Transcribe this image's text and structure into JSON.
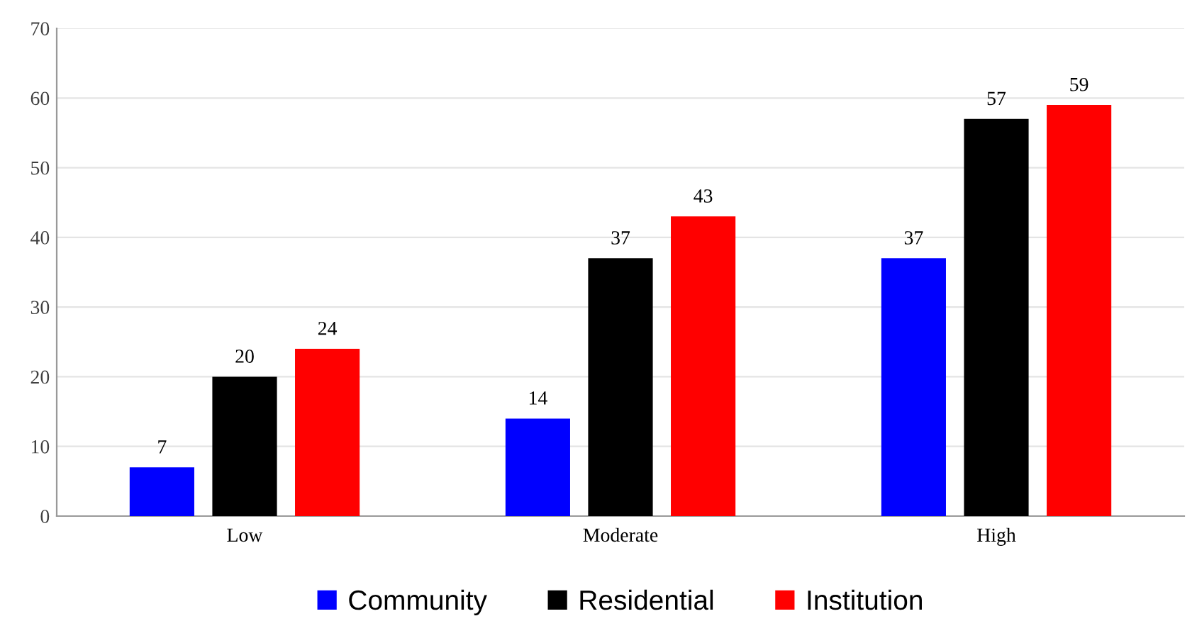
{
  "chart_data": {
    "type": "bar",
    "categories": [
      "Low",
      "Moderate",
      "High"
    ],
    "series": [
      {
        "name": "Community",
        "color": "#0000ff",
        "values": [
          7,
          14,
          37
        ]
      },
      {
        "name": "Residential",
        "color": "#000000",
        "values": [
          20,
          37,
          57
        ]
      },
      {
        "name": "Institution",
        "color": "#ff0000",
        "values": [
          24,
          43,
          59
        ]
      }
    ],
    "ylim": [
      0,
      70
    ],
    "yticks": [
      0,
      10,
      20,
      30,
      40,
      50,
      60,
      70
    ],
    "grid": "y",
    "legend": "bottom",
    "data_labels": true
  }
}
